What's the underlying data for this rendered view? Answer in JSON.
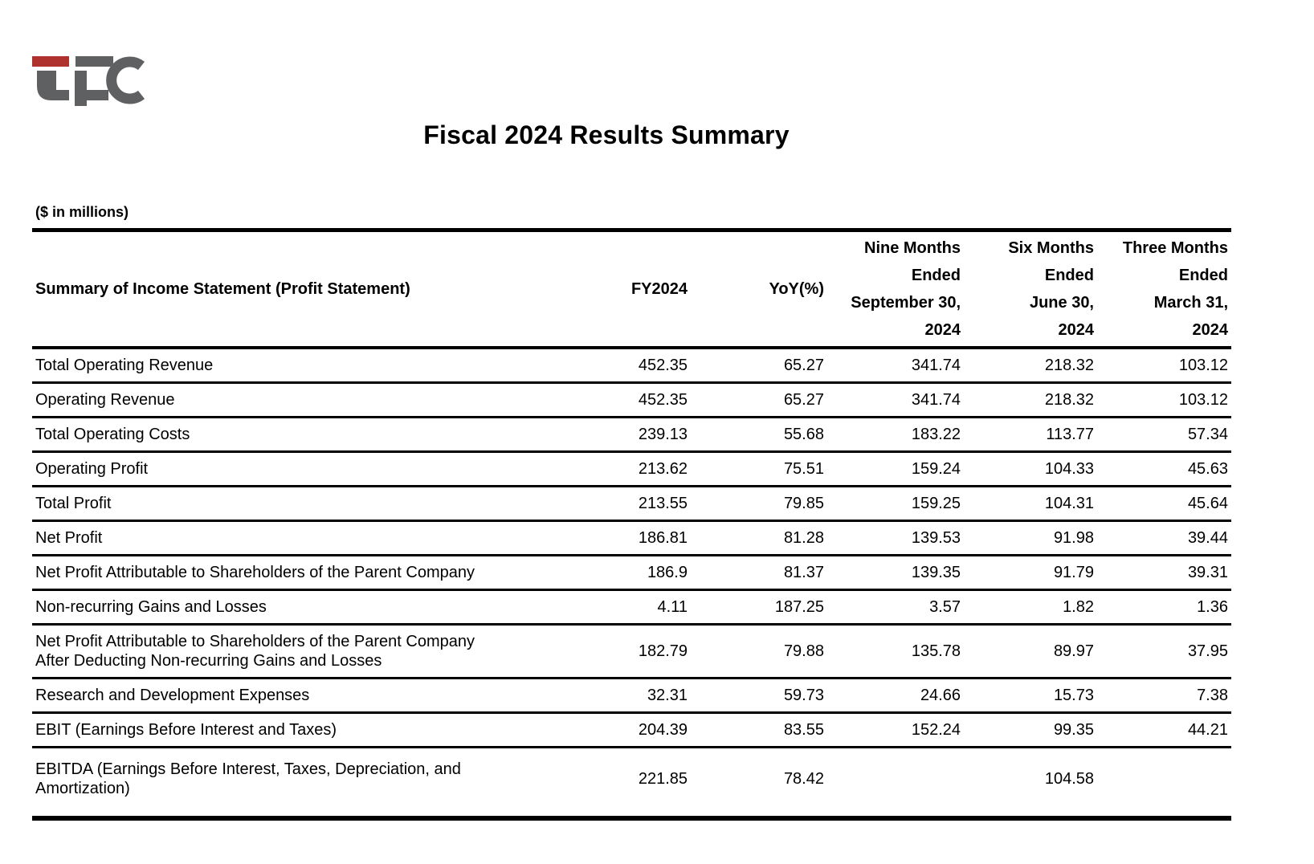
{
  "logo": {
    "alt": "LFC company logo",
    "red_color": "#b0322f",
    "gray_color": "#5f6062"
  },
  "title": "Fiscal 2024 Results Summary",
  "units_label": "($ in millions)",
  "table": {
    "columns": [
      {
        "label": "Summary of Income Statement (Profit Statement)"
      },
      {
        "label": "FY2024"
      },
      {
        "label": "YoY(%)"
      },
      {
        "label_lines": [
          "Nine Months",
          "Ended",
          "September 30,",
          "2024"
        ]
      },
      {
        "label_lines": [
          "Six Months",
          "Ended",
          "June 30,",
          "2024"
        ]
      },
      {
        "label_lines": [
          "Three Months",
          "Ended",
          "March 31,",
          "2024"
        ]
      }
    ],
    "rows": [
      {
        "label": "Total Operating Revenue",
        "values": [
          "452.35",
          "65.27",
          "341.74",
          "218.32",
          "103.12"
        ]
      },
      {
        "label": "Operating Revenue",
        "values": [
          "452.35",
          "65.27",
          "341.74",
          "218.32",
          "103.12"
        ]
      },
      {
        "label": "Total Operating Costs",
        "values": [
          "239.13",
          "55.68",
          "183.22",
          "113.77",
          "57.34"
        ]
      },
      {
        "label": "Operating Profit",
        "values": [
          "213.62",
          "75.51",
          "159.24",
          "104.33",
          "45.63"
        ]
      },
      {
        "label": "Total Profit",
        "values": [
          "213.55",
          "79.85",
          "159.25",
          "104.31",
          "45.64"
        ]
      },
      {
        "label": "Net Profit",
        "values": [
          "186.81",
          "81.28",
          "139.53",
          "91.98",
          "39.44"
        ]
      },
      {
        "label": "Net Profit Attributable to Shareholders of the Parent Company",
        "values": [
          "186.9",
          "81.37",
          "139.35",
          "91.79",
          "39.31"
        ]
      },
      {
        "label": "Non-recurring Gains and Losses",
        "values": [
          "4.11",
          "187.25",
          "3.57",
          "1.82",
          "1.36"
        ]
      },
      {
        "label_lines": [
          "Net Profit Attributable to Shareholders of the Parent Company",
          "After Deducting Non-recurring Gains and Losses"
        ],
        "values": [
          "182.79",
          "79.88",
          "135.78",
          "89.97",
          "37.95"
        ]
      },
      {
        "label": "Research and Development Expenses",
        "values": [
          "32.31",
          "59.73",
          "24.66",
          "15.73",
          "7.38"
        ]
      },
      {
        "label": "EBIT (Earnings Before Interest and Taxes)",
        "values": [
          "204.39",
          "83.55",
          "152.24",
          "99.35",
          "44.21"
        ]
      },
      {
        "label_lines": [
          "EBITDA (Earnings Before Interest, Taxes, Depreciation, and",
          "Amortization)"
        ],
        "values": [
          "221.85",
          "78.42",
          "",
          "104.58",
          ""
        ]
      }
    ]
  }
}
